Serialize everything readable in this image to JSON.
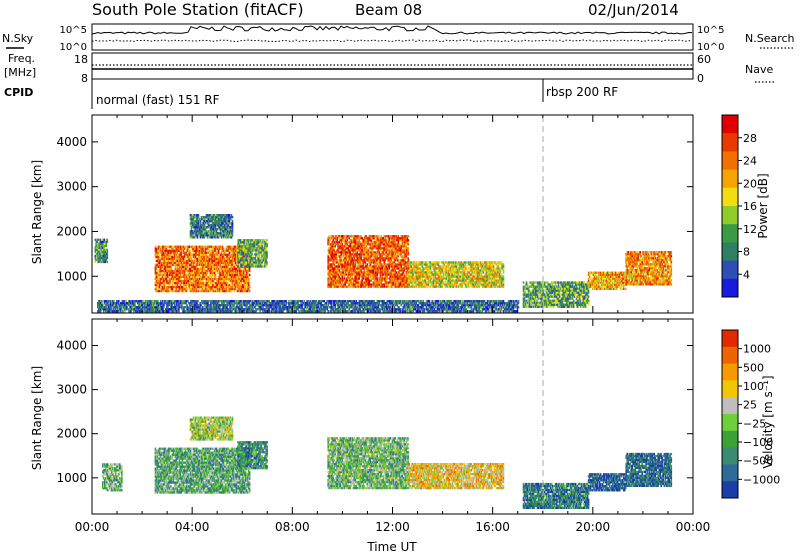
{
  "header": {
    "station": "South Pole Station (fitACF)",
    "beam": "Beam 08",
    "date": "02/Jun/2014"
  },
  "top_panels": {
    "nsky_label": "N.Sky",
    "nsky_ticks": [
      "10^5",
      "10^0"
    ],
    "nsearch_label": "N.Search",
    "nsearch_ticks": [
      "10^5",
      "10^0"
    ],
    "freq_label_1": "Freq.",
    "freq_label_2": "[MHz]",
    "freq_ticks": [
      "18",
      "8"
    ],
    "nave_label": "Nave",
    "nave_ticks": [
      "60",
      "0"
    ],
    "cpid_label": "CPID",
    "cpid_segments": [
      {
        "text": "normal (fast) 151 RF",
        "start_hour": 0
      },
      {
        "text": "rbsp 200 RF",
        "start_hour": 18
      }
    ]
  },
  "chart_data": [
    {
      "type": "heatmap",
      "title": "",
      "xlabel": "",
      "ylabel": "Slant Range [km]",
      "xlim": [
        0,
        24
      ],
      "ylim": [
        180,
        4600
      ],
      "yticks": [
        1000,
        2000,
        3000,
        4000
      ],
      "colorbar": {
        "label": "Power [dB]",
        "ticks": [
          "4",
          "8",
          "12",
          "16",
          "20",
          "24",
          "28"
        ],
        "range": [
          0,
          32
        ],
        "colors": [
          "#1a1adf",
          "#2d4fb5",
          "#2e7f63",
          "#3a9a46",
          "#8fce2a",
          "#f3dc10",
          "#f6a500",
          "#f07000",
          "#e83a00",
          "#e00000"
        ]
      },
      "echo_regions": [
        {
          "start_hour": 0.1,
          "end_hour": 0.6,
          "range_min": 1300,
          "range_max": 1800,
          "level": 0.3
        },
        {
          "start_hour": 2.5,
          "end_hour": 6.3,
          "range_min": 650,
          "range_max": 1650,
          "level": 0.75
        },
        {
          "start_hour": 5.8,
          "end_hour": 7.0,
          "range_min": 1200,
          "range_max": 1800,
          "level": 0.35
        },
        {
          "start_hour": 3.9,
          "end_hour": 5.6,
          "range_min": 1850,
          "range_max": 2350,
          "level": 0.25
        },
        {
          "start_hour": 9.4,
          "end_hour": 12.6,
          "range_min": 750,
          "range_max": 1900,
          "level": 0.8
        },
        {
          "start_hour": 12.6,
          "end_hour": 16.4,
          "range_min": 750,
          "range_max": 1300,
          "level": 0.55
        },
        {
          "start_hour": 17.2,
          "end_hour": 19.8,
          "range_min": 300,
          "range_max": 850,
          "level": 0.35
        },
        {
          "start_hour": 19.8,
          "end_hour": 21.3,
          "range_min": 700,
          "range_max": 1100,
          "level": 0.65
        },
        {
          "start_hour": 21.3,
          "end_hour": 23.1,
          "range_min": 800,
          "range_max": 1550,
          "level": 0.7
        },
        {
          "start_hour": 0.2,
          "end_hour": 17.0,
          "range_min": 200,
          "range_max": 450,
          "level": 0.2
        }
      ]
    },
    {
      "type": "heatmap",
      "title": "",
      "xlabel": "Time UT",
      "ylabel": "Slant Range [km]",
      "xlim": [
        0,
        24
      ],
      "ylim": [
        180,
        4600
      ],
      "xticks": [
        "00:00",
        "04:00",
        "08:00",
        "12:00",
        "16:00",
        "20:00",
        "00:00"
      ],
      "yticks": [
        1000,
        2000,
        3000,
        4000
      ],
      "colorbar": {
        "label": "Velocity [m s⁻¹]",
        "ticks": [
          "1000",
          "500",
          "100",
          "25",
          "−25",
          "−100",
          "−500",
          "−1000"
        ],
        "colors": [
          "#1a3ea8",
          "#2e6a9a",
          "#3a8a72",
          "#3aa238",
          "#6fcf3a",
          "#bebebe",
          "#f2c600",
          "#f59a00",
          "#ee6400",
          "#e22a00"
        ]
      },
      "echo_regions": [
        {
          "start_hour": 0.4,
          "end_hour": 1.2,
          "range_min": 700,
          "range_max": 1300,
          "level": 0.4
        },
        {
          "start_hour": 2.5,
          "end_hour": 6.3,
          "range_min": 650,
          "range_max": 1650,
          "level": 0.35
        },
        {
          "start_hour": 5.8,
          "end_hour": 7.0,
          "range_min": 1200,
          "range_max": 1800,
          "level": 0.25
        },
        {
          "start_hour": 3.9,
          "end_hour": 5.6,
          "range_min": 1850,
          "range_max": 2350,
          "level": 0.5
        },
        {
          "start_hour": 9.4,
          "end_hour": 12.6,
          "range_min": 750,
          "range_max": 1900,
          "level": 0.4
        },
        {
          "start_hour": 12.6,
          "end_hour": 16.4,
          "range_min": 750,
          "range_max": 1300,
          "level": 0.65
        },
        {
          "start_hour": 17.2,
          "end_hour": 19.8,
          "range_min": 300,
          "range_max": 850,
          "level": 0.2
        },
        {
          "start_hour": 19.8,
          "end_hour": 21.3,
          "range_min": 700,
          "range_max": 1100,
          "level": 0.1
        },
        {
          "start_hour": 21.3,
          "end_hour": 23.1,
          "range_min": 800,
          "range_max": 1550,
          "level": 0.15
        }
      ]
    }
  ]
}
